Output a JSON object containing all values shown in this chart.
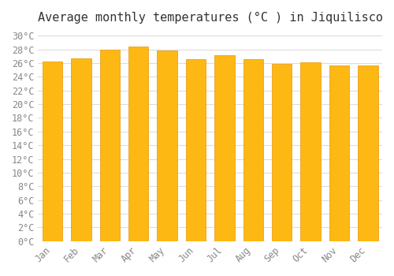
{
  "title": "Average monthly temperatures (°C ) in Jiquilisco",
  "months": [
    "Jan",
    "Feb",
    "Mar",
    "Apr",
    "May",
    "Jun",
    "Jul",
    "Aug",
    "Sep",
    "Oct",
    "Nov",
    "Dec"
  ],
  "values": [
    26.2,
    26.7,
    27.9,
    28.4,
    27.8,
    26.6,
    27.1,
    26.6,
    25.9,
    26.1,
    25.6,
    25.7
  ],
  "bar_color_top": "#FDB813",
  "bar_color_bottom": "#F5A623",
  "bar_edge_color": "#E8960A",
  "background_color": "#FFFFFF",
  "grid_color": "#DDDDDD",
  "title_fontsize": 11,
  "tick_fontsize": 8.5,
  "ylim": [
    0,
    30
  ],
  "ytick_step": 2
}
